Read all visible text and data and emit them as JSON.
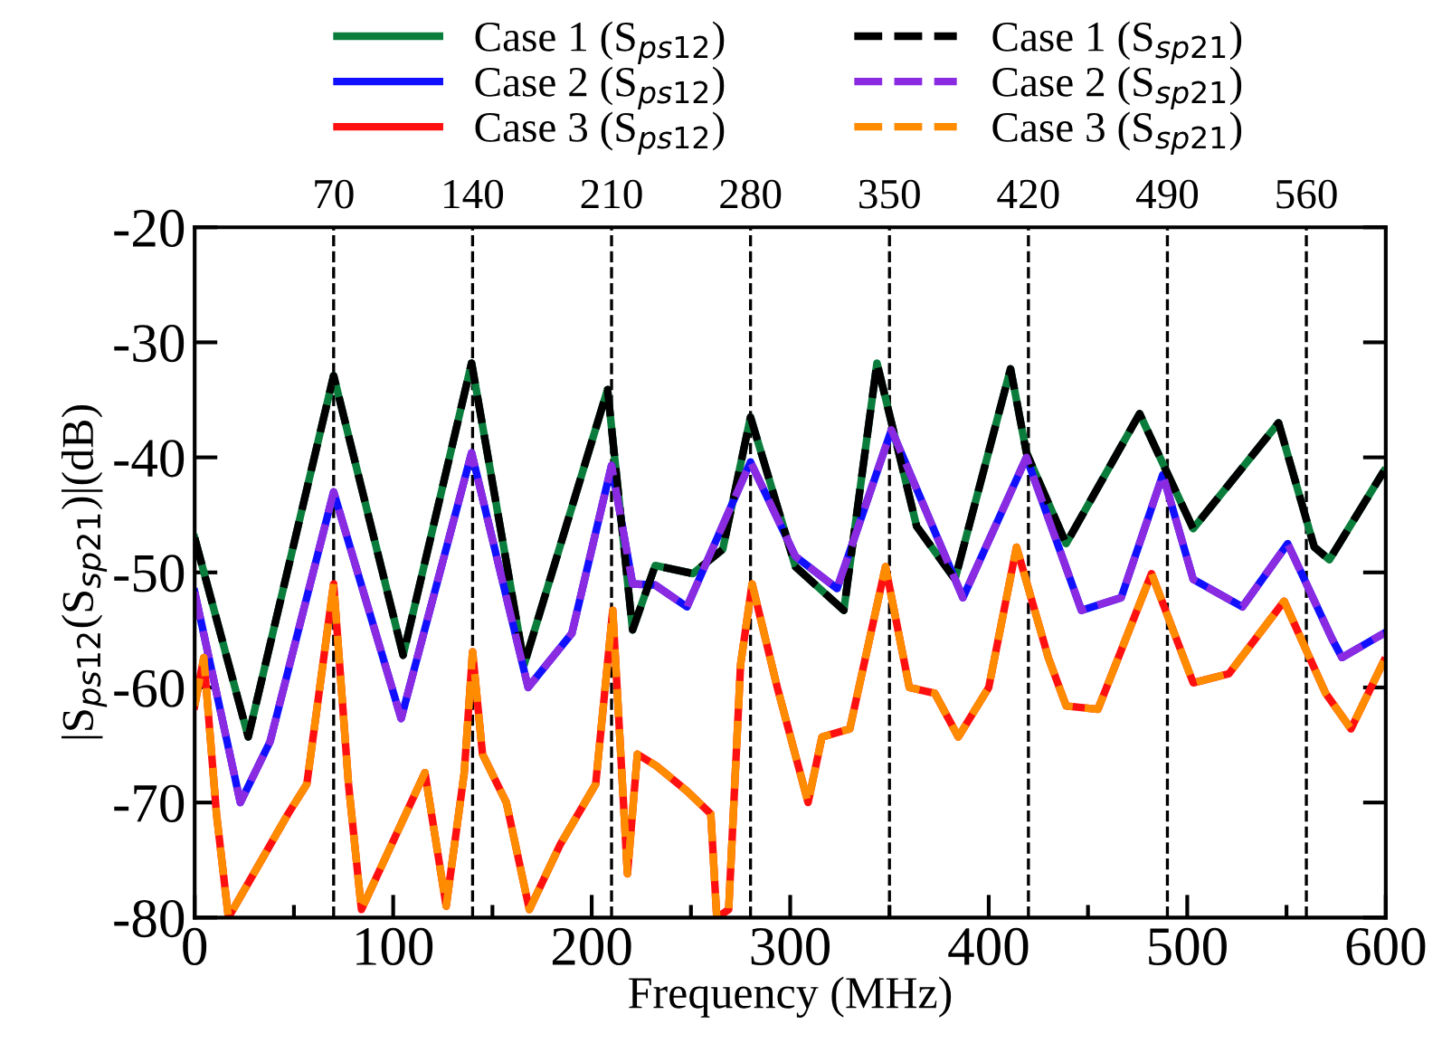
{
  "chart_data": {
    "type": "line",
    "xlabel": "Frequency (MHz)",
    "ylabel": "|S$_{ps12}$(S$_{sp21}$)|(dB)",
    "xlim": [
      0,
      600
    ],
    "xticks": [
      0,
      100,
      200,
      300,
      400,
      500,
      600
    ],
    "ylim": [
      -80,
      -20
    ],
    "yticks": [
      -80,
      -70,
      -60,
      -50,
      -40,
      -30,
      -20
    ],
    "x2lim": [
      0,
      600
    ],
    "x2ticks": [
      70,
      140,
      210,
      280,
      350,
      420,
      490,
      560
    ],
    "grid": false,
    "legend": "top",
    "marker": "none",
    "ref_lines": [
      {
        "axis": "x",
        "value": 70,
        "color": "#000000",
        "line_style": "dashed"
      },
      {
        "axis": "x",
        "value": 140,
        "color": "#000000",
        "line_style": "dashed"
      },
      {
        "axis": "x",
        "value": 210,
        "color": "#000000",
        "line_style": "dashed"
      },
      {
        "axis": "x",
        "value": 280,
        "color": "#000000",
        "line_style": "dashed"
      },
      {
        "axis": "x",
        "value": 350,
        "color": "#000000",
        "line_style": "dashed"
      },
      {
        "axis": "x",
        "value": 420,
        "color": "#000000",
        "line_style": "dashed"
      },
      {
        "axis": "x",
        "value": 490,
        "color": "#000000",
        "line_style": "dashed"
      },
      {
        "axis": "x",
        "value": 560,
        "color": "#000000",
        "line_style": "dashed"
      }
    ],
    "series": [
      {
        "name": "Case 1 (S$_{ps12}$)",
        "color": "#0a7d3c",
        "line_style": "solid",
        "x": [
          0,
          27,
          70,
          105,
          139.5,
          166,
          208,
          220.6,
          232,
          251,
          266,
          280,
          302.6,
          327,
          343.7,
          363.7,
          383,
          411,
          419,
          439,
          476,
          503,
          546,
          564,
          571.6,
          599
        ],
        "values": [
          -47,
          -64.3,
          -32.9,
          -57.2,
          -31.8,
          -58,
          -34.1,
          -55,
          -49.4,
          -50.1,
          -48,
          -36.5,
          -49.5,
          -53.3,
          -31.8,
          -46,
          -50.6,
          -32.3,
          -39.6,
          -47.5,
          -36.2,
          -46.2,
          -37,
          -47.8,
          -48.9,
          -41.2
        ]
      },
      {
        "name": "Case 2 (S$_{ps12}$)",
        "color": "#1010ff",
        "line_style": "solid",
        "x": [
          0,
          23,
          38,
          70,
          104,
          139.5,
          168,
          190,
          210,
          220.6,
          232,
          248,
          280,
          302.6,
          323.6,
          351,
          387,
          419,
          446.7,
          466.7,
          487.7,
          503,
          527.8,
          550.6,
          573,
          578,
          599
        ],
        "values": [
          -51.7,
          -70,
          -64.7,
          -43,
          -62.7,
          -39.6,
          -60,
          -55.3,
          -40.7,
          -51,
          -51.1,
          -53,
          -40.4,
          -48.6,
          -51.4,
          -37.6,
          -52.2,
          -40,
          -53.3,
          -52.2,
          -41.5,
          -50.6,
          -53,
          -47.5,
          -55.8,
          -57.4,
          -55.3
        ]
      },
      {
        "name": "Case 3 (S$_{ps12}$)",
        "color": "#ff1010",
        "line_style": "solid",
        "x": [
          0,
          4.6,
          11,
          17,
          47,
          56.5,
          70,
          77.5,
          84,
          116,
          126.7,
          135.8,
          140,
          145,
          157,
          168.6,
          184,
          202,
          210.6,
          218,
          223,
          232.5,
          248,
          260,
          263,
          269,
          275,
          280.8,
          293.5,
          309,
          316,
          330,
          348,
          360,
          372.8,
          384.7,
          400,
          414,
          430,
          439,
          455,
          482,
          503,
          521,
          548.8,
          569.7,
          582.5,
          599
        ],
        "values": [
          -61.6,
          -57.4,
          -71,
          -80,
          -71,
          -68.4,
          -51,
          -68.4,
          -79.3,
          -67.4,
          -79,
          -67.4,
          -56.9,
          -65.8,
          -70,
          -79.3,
          -73.7,
          -68.4,
          -53.3,
          -76.2,
          -65.8,
          -66.8,
          -69,
          -71,
          -80,
          -79.3,
          -58,
          -51,
          -60,
          -70,
          -64.3,
          -63.6,
          -49.5,
          -60,
          -60.5,
          -64.3,
          -60,
          -47.8,
          -57.4,
          -61.6,
          -61.9,
          -50.1,
          -59.6,
          -58.8,
          -52.5,
          -60.5,
          -63.6,
          -57.7
        ]
      },
      {
        "name": "Case 1 (S$_{sp21}$)",
        "color": "#000000",
        "line_style": "dashed",
        "x": [
          0,
          27,
          70,
          105,
          139.5,
          166,
          208,
          220.6,
          232,
          251,
          266,
          280,
          302.6,
          327,
          343.7,
          363.7,
          383,
          411,
          419,
          439,
          476,
          503,
          546,
          564,
          571.6,
          599
        ],
        "values": [
          -47,
          -64.3,
          -32.9,
          -57.2,
          -31.8,
          -58,
          -34.1,
          -55,
          -49.4,
          -50.1,
          -48,
          -36.5,
          -49.5,
          -53.3,
          -31.8,
          -46,
          -50.6,
          -32.3,
          -39.6,
          -47.5,
          -36.2,
          -46.2,
          -37,
          -47.8,
          -48.9,
          -41.2
        ]
      },
      {
        "name": "Case 2 (S$_{sp21}$)",
        "color": "#8a2be2",
        "line_style": "dashed",
        "x": [
          0,
          23,
          38,
          70,
          104,
          139.5,
          168,
          190,
          210,
          220.6,
          232,
          248,
          280,
          302.6,
          323.6,
          351,
          387,
          419,
          446.7,
          466.7,
          487.7,
          503,
          527.8,
          550.6,
          573,
          578,
          599
        ],
        "values": [
          -51.7,
          -70,
          -64.7,
          -43,
          -62.7,
          -39.6,
          -60,
          -55.3,
          -40.7,
          -51,
          -51.1,
          -53,
          -40.4,
          -48.6,
          -51.4,
          -37.6,
          -52.2,
          -40,
          -53.3,
          -52.2,
          -41.5,
          -50.6,
          -53,
          -47.5,
          -55.8,
          -57.4,
          -55.3
        ]
      },
      {
        "name": "Case 3 (S$_{sp21}$)",
        "color": "#ff8c00",
        "line_style": "dashed",
        "x": [
          0,
          4.6,
          11,
          17,
          47,
          56.5,
          70,
          77.5,
          84,
          116,
          126.7,
          135.8,
          140,
          145,
          157,
          168.6,
          184,
          202,
          210.6,
          218,
          223,
          232.5,
          248,
          260,
          263,
          269,
          275,
          280.8,
          293.5,
          309,
          316,
          330,
          348,
          360,
          372.8,
          384.7,
          400,
          414,
          430,
          439,
          455,
          482,
          503,
          521,
          548.8,
          569.7,
          582.5,
          599
        ],
        "values": [
          -61.6,
          -57.4,
          -71,
          -80,
          -71,
          -68.4,
          -51,
          -68.4,
          -79.3,
          -67.4,
          -79,
          -67.4,
          -56.9,
          -65.8,
          -70,
          -79.3,
          -73.7,
          -68.4,
          -53.3,
          -76.2,
          -65.8,
          -66.8,
          -69,
          -71,
          -80,
          -79.3,
          -58,
          -51,
          -60,
          -70,
          -64.3,
          -63.6,
          -49.5,
          -60,
          -60.5,
          -64.3,
          -60,
          -47.8,
          -57.4,
          -61.6,
          -61.9,
          -50.1,
          -59.6,
          -58.8,
          -52.5,
          -60.5,
          -63.6,
          -57.7
        ]
      }
    ]
  }
}
